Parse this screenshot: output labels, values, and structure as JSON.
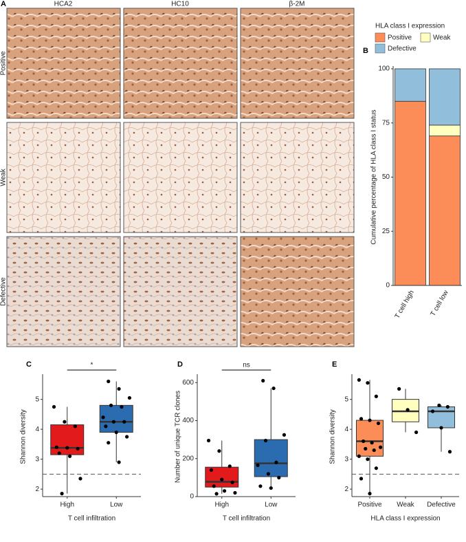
{
  "image_grid": {
    "panel_label": "A",
    "columns": [
      "HCA2",
      "HC10",
      "β-2M"
    ],
    "rows": [
      "Positive",
      "Weak",
      "Defective"
    ]
  },
  "chart_data": [
    {
      "type": "stacked_bar",
      "panel_label": "B",
      "ylabel": "Cumulative percentage of HLA class I status",
      "legend_title": "HLA class I expression",
      "categories": [
        "T cell high",
        "T cell low"
      ],
      "series": [
        {
          "name": "Positive",
          "color": "#fc8d59",
          "values": [
            85,
            69
          ]
        },
        {
          "name": "Weak",
          "color": "#ffffbf",
          "values": [
            0,
            5
          ]
        },
        {
          "name": "Defective",
          "color": "#91bfdb",
          "values": [
            15,
            26
          ]
        }
      ],
      "ylim": [
        0,
        100
      ],
      "yticks": [
        0,
        25,
        50,
        75,
        100
      ]
    },
    {
      "type": "box",
      "panel_label": "C",
      "xlabel": "T cell infiltration",
      "ylabel": "Shannon diversity",
      "categories": [
        "High",
        "Low"
      ],
      "colors": [
        "#e31a1c",
        "#2b6cb0"
      ],
      "boxes": [
        {
          "whisker_low": 1.85,
          "q1": 3.15,
          "median": 3.38,
          "q3": 4.15,
          "whisker_high": 4.75
        },
        {
          "whisker_low": 2.9,
          "q1": 3.9,
          "median": 4.25,
          "q3": 4.8,
          "whisker_high": 5.6
        }
      ],
      "points": [
        [
          4.75,
          4.25,
          4.1,
          3.4,
          3.38,
          3.35,
          3.2,
          3.1,
          2.35,
          1.85
        ],
        [
          5.6,
          5.35,
          5.05,
          4.8,
          4.75,
          4.4,
          4.25,
          4.25,
          4.1,
          3.9,
          3.75,
          3.55,
          2.9
        ]
      ],
      "reference_line": 2.5,
      "significance": "*",
      "ylim": [
        1.75,
        5.75
      ],
      "yticks": [
        2,
        3,
        4,
        5
      ]
    },
    {
      "type": "box",
      "panel_label": "D",
      "xlabel": "T cell infiltration",
      "ylabel": "Number of unique TCR clones",
      "categories": [
        "High",
        "Low"
      ],
      "colors": [
        "#e31a1c",
        "#2b6cb0"
      ],
      "boxes": [
        {
          "whisker_low": 15,
          "q1": 50,
          "median": 78,
          "q3": 155,
          "whisker_high": 295
        },
        {
          "whisker_low": 40,
          "q1": 105,
          "median": 175,
          "q3": 300,
          "whisker_high": 570
        }
      ],
      "points": [
        [
          295,
          240,
          160,
          140,
          90,
          75,
          55,
          30,
          20,
          15
        ],
        [
          610,
          570,
          325,
          295,
          180,
          165,
          120,
          100,
          55,
          45
        ]
      ],
      "significance": "ns",
      "ylim": [
        0,
        630
      ],
      "yticks": [
        0,
        200,
        400,
        600
      ]
    },
    {
      "type": "box",
      "panel_label": "E",
      "xlabel": "HLA class I expression",
      "ylabel": "Shannon diversity",
      "categories": [
        "Positive",
        "Weak",
        "Defective"
      ],
      "colors": [
        "#fc8d59",
        "#ffffbf",
        "#91bfdb"
      ],
      "boxes": [
        {
          "whisker_low": 1.85,
          "q1": 3.1,
          "median": 3.6,
          "q3": 4.3,
          "whisker_high": 5.65
        },
        {
          "whisker_low": 3.9,
          "q1": 4.25,
          "median": 4.6,
          "q3": 5.0,
          "whisker_high": 5.35
        },
        {
          "whisker_low": 3.25,
          "q1": 4.05,
          "median": 4.6,
          "q3": 4.75,
          "whisker_high": 4.8
        }
      ],
      "points": [
        [
          5.65,
          5.55,
          5.1,
          4.35,
          4.3,
          4.2,
          3.6,
          3.55,
          3.4,
          3.35,
          3.3,
          3.1,
          3.0,
          2.7,
          2.35,
          1.85
        ],
        [
          5.35,
          4.65,
          3.9
        ],
        [
          4.8,
          4.75,
          4.6,
          4.05,
          3.25
        ]
      ],
      "reference_line": 2.5,
      "ylim": [
        1.75,
        5.75
      ],
      "yticks": [
        2,
        3,
        4,
        5
      ]
    }
  ]
}
